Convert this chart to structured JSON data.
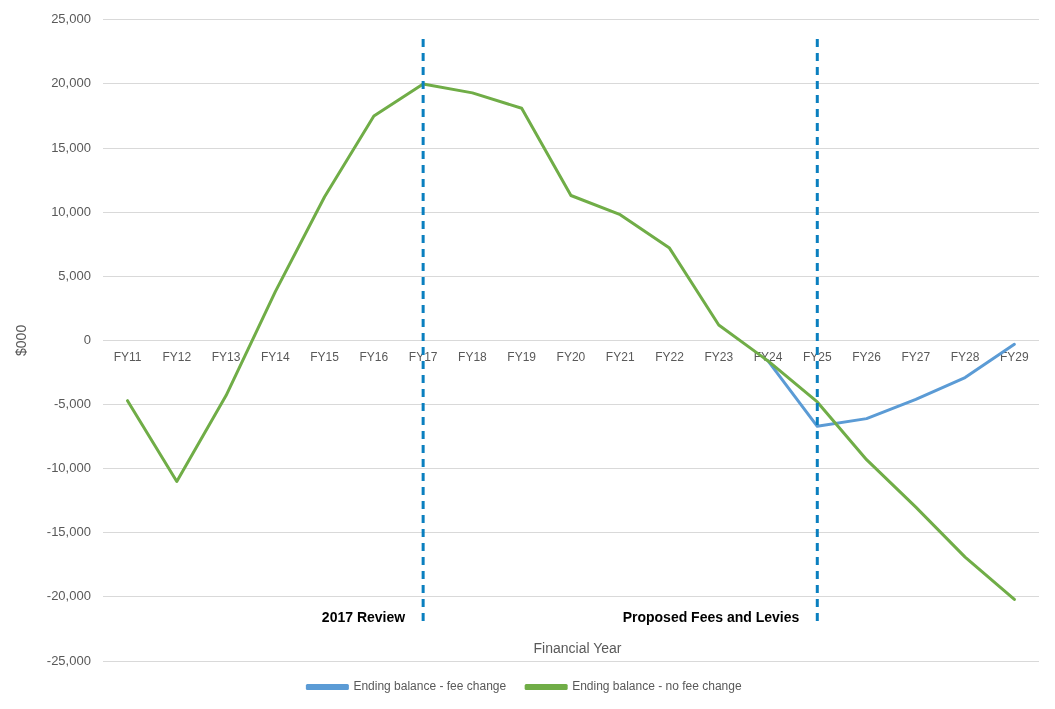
{
  "chart_data": {
    "type": "line",
    "xlabel": "Financial Year",
    "ylabel": "$000",
    "categories": [
      "FY11",
      "FY12",
      "FY13",
      "FY14",
      "FY15",
      "FY16",
      "FY17",
      "FY18",
      "FY19",
      "FY20",
      "FY21",
      "FY22",
      "FY23",
      "FY24",
      "FY25",
      "FY26",
      "FY27",
      "FY28",
      "FY29"
    ],
    "series": [
      {
        "name": "Ending balance - fee change",
        "color": "#5b9bd5",
        "values": [
          null,
          null,
          null,
          null,
          null,
          null,
          null,
          null,
          null,
          null,
          null,
          null,
          null,
          -1600,
          -6700,
          -6100,
          -4600,
          -2900,
          -300
        ]
      },
      {
        "name": "Ending balance - no fee change",
        "color": "#70ad47",
        "values": [
          -4700,
          -11000,
          -4300,
          3800,
          11200,
          17500,
          20000,
          19300,
          18100,
          11300,
          9800,
          7200,
          1200,
          -1600,
          -4800,
          -9300,
          -13000,
          -16900,
          -20200
        ]
      }
    ],
    "ylim": [
      -25000,
      25000
    ],
    "yticks": [
      {
        "value": -25000,
        "label": "-25,000"
      },
      {
        "value": -20000,
        "label": "-20,000"
      },
      {
        "value": -15000,
        "label": "-15,000"
      },
      {
        "value": -10000,
        "label": "-10,000"
      },
      {
        "value": -5000,
        "label": "-5,000"
      },
      0,
      {
        "value": 5000,
        "label": "5,000"
      },
      {
        "value": 10000,
        "label": "10,000"
      },
      {
        "value": 15000,
        "label": "15,000"
      },
      {
        "value": 20000,
        "label": "20,000"
      },
      {
        "value": 25000,
        "label": "25,000"
      }
    ],
    "ref_lines": [
      {
        "axis": "x",
        "value": "FY17",
        "label": "2017 Review",
        "color": "#0a7fbf",
        "line_style": "dashed"
      },
      {
        "axis": "x",
        "value": "FY25",
        "label": "Proposed Fees and Levies",
        "color": "#0a7fbf",
        "line_style": "dashed"
      }
    ],
    "grid": "y",
    "legend": "bottom",
    "marker": "none",
    "line_style": "solid"
  }
}
